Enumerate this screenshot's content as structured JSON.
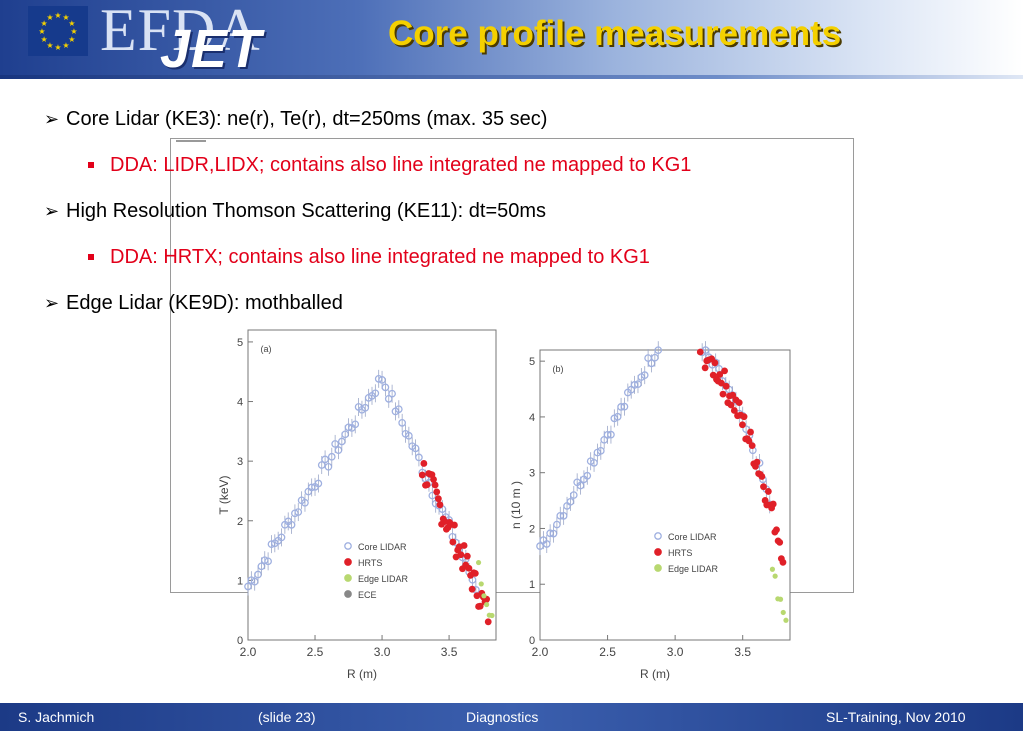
{
  "header": {
    "logo_top": "EFDA",
    "logo_bottom": "JET",
    "title": "Core profile measurements"
  },
  "bullets": [
    {
      "level": 1,
      "text": "Core Lidar (KE3): ne(r), Te(r), dt=250ms (max. 35 sec)"
    },
    {
      "level": 2,
      "text": "DDA: LIDR,LIDX; contains also line integrated ne mapped to KG1"
    },
    {
      "level": 1,
      "text": "High Resolution Thomson Scattering (KE11): dt=50ms"
    },
    {
      "level": 2,
      "text": "DDA: HRTX; contains also line integrated ne mapped to KG1"
    },
    {
      "level": 1,
      "text": "Edge Lidar (KE9D): mothballed"
    }
  ],
  "figure": {
    "panels": [
      {
        "tag": "(a)",
        "ylabel": "T  (keV)",
        "xlabel": "R     (m)",
        "yticks": [
          "0",
          "1",
          "2",
          "3",
          "4",
          "5"
        ],
        "xticks": [
          "2.0",
          "2.5",
          "3.0",
          "3.5"
        ],
        "legend": [
          "Core LIDAR",
          "HRTS",
          "Edge LIDAR",
          "ECE"
        ]
      },
      {
        "tag": "(b)",
        "ylabel": "n  (10   m  )",
        "xlabel": "R     (m)",
        "yticks": [
          "0",
          "1",
          "2",
          "3",
          "4",
          "5"
        ],
        "xticks": [
          "2.0",
          "2.5",
          "3.0",
          "3.5"
        ],
        "legend": [
          "Core LIDAR",
          "HRTS",
          "Edge LIDAR"
        ]
      }
    ],
    "colors": {
      "core": "#9fb0e0",
      "hrts": "#e02028",
      "edge": "#b8d870",
      "ece": "#888888"
    }
  },
  "footer": {
    "author": "S. Jachmich",
    "slide": "(slide 23)",
    "topic": "Diagnostics",
    "event": "SL-Training, Nov 2010"
  }
}
